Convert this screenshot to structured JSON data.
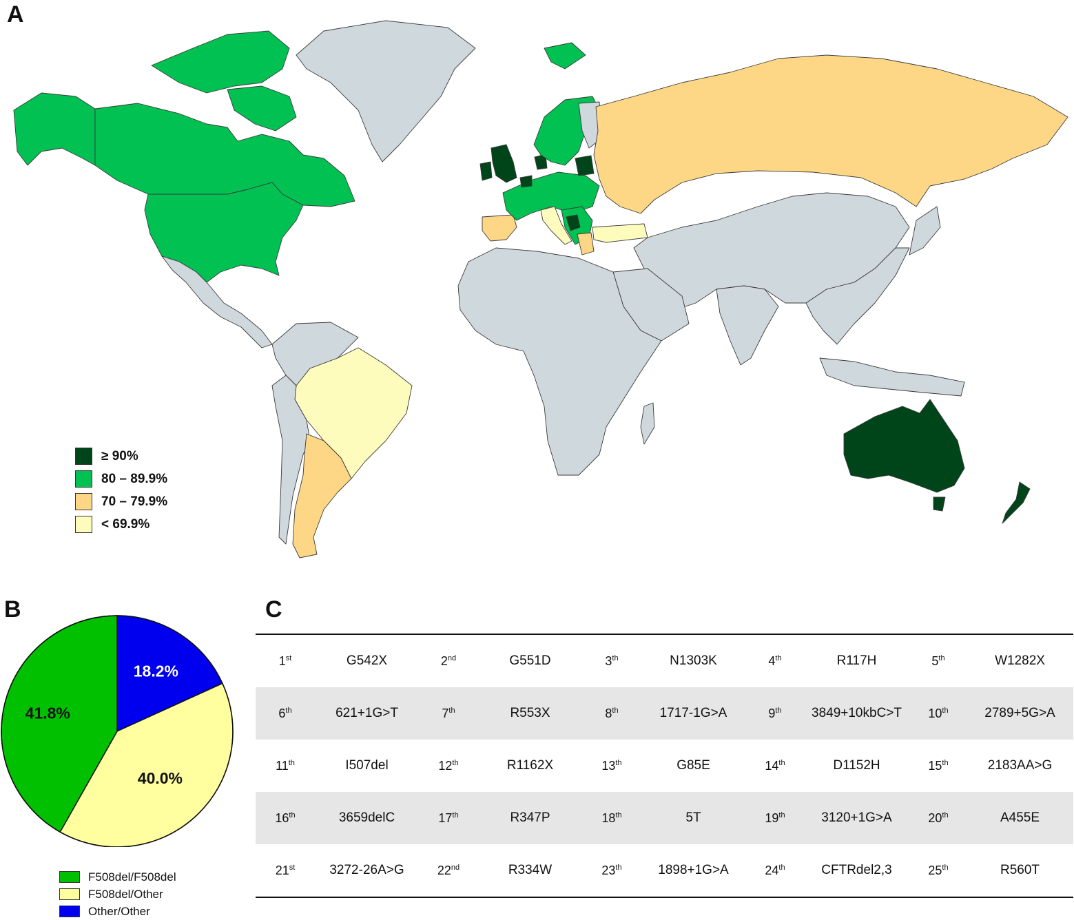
{
  "panels": {
    "a": "A",
    "b": "B",
    "c": "C"
  },
  "map": {
    "legend": [
      {
        "label": "≥ 90%",
        "color": "#00451a"
      },
      {
        "label": "80 – 89.9%",
        "color": "#00c152"
      },
      {
        "label": "70 – 79.9%",
        "color": "#fdd785"
      },
      {
        "label": "< 69.9%",
        "color": "#fefcbd"
      }
    ],
    "no_data_color": "#cfd8dc"
  },
  "chart_data": {
    "type": "pie",
    "slices": [
      {
        "name": "F508del/F508del",
        "value": 41.8,
        "label": "41.8%",
        "color": "#00c000"
      },
      {
        "name": "F508del/Other",
        "value": 40.0,
        "label": "40.0%",
        "color": "#ffffa0"
      },
      {
        "name": "Other/Other",
        "value": 18.2,
        "label": "18.2%",
        "color": "#0000ee"
      }
    ]
  },
  "pie_legend": [
    {
      "label": "F508del/F508del",
      "color": "#00c000"
    },
    {
      "label": "F508del/Other",
      "color": "#ffffa0"
    },
    {
      "label": "Other/Other",
      "color": "#0000ee"
    }
  ],
  "mutations": [
    [
      {
        "n": "1",
        "s": "st",
        "m": "G542X"
      },
      {
        "n": "2",
        "s": "nd",
        "m": "G551D"
      },
      {
        "n": "3",
        "s": "th",
        "m": "N1303K"
      },
      {
        "n": "4",
        "s": "th",
        "m": "R117H"
      },
      {
        "n": "5",
        "s": "th",
        "m": "W1282X"
      }
    ],
    [
      {
        "n": "6",
        "s": "th",
        "m": "621+1G>T"
      },
      {
        "n": "7",
        "s": "th",
        "m": "R553X"
      },
      {
        "n": "8",
        "s": "th",
        "m": "1717-1G>A"
      },
      {
        "n": "9",
        "s": "th",
        "m": "3849+10kbC>T"
      },
      {
        "n": "10",
        "s": "th",
        "m": "2789+5G>A"
      }
    ],
    [
      {
        "n": "11",
        "s": "th",
        "m": "I507del"
      },
      {
        "n": "12",
        "s": "th",
        "m": "R1162X"
      },
      {
        "n": "13",
        "s": "th",
        "m": "G85E"
      },
      {
        "n": "14",
        "s": "th",
        "m": "D1152H"
      },
      {
        "n": "15",
        "s": "th",
        "m": "2183AA>G"
      }
    ],
    [
      {
        "n": "16",
        "s": "th",
        "m": "3659delC"
      },
      {
        "n": "17",
        "s": "th",
        "m": "R347P"
      },
      {
        "n": "18",
        "s": "th",
        "m": "5T"
      },
      {
        "n": "19",
        "s": "th",
        "m": "3120+1G>A"
      },
      {
        "n": "20",
        "s": "th",
        "m": "A455E"
      }
    ],
    [
      {
        "n": "21",
        "s": "st",
        "m": "3272-26A>G"
      },
      {
        "n": "22",
        "s": "nd",
        "m": "R334W"
      },
      {
        "n": "23",
        "s": "th",
        "m": "1898+1G>A"
      },
      {
        "n": "24",
        "s": "th",
        "m": "CFTRdel2,3"
      },
      {
        "n": "25",
        "s": "th",
        "m": "R560T"
      }
    ]
  ]
}
